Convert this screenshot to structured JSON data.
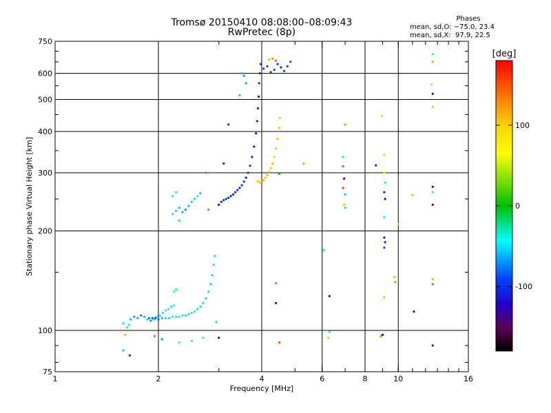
{
  "title": {
    "line1": "Tromsø 20150410 08:08:00–08:09:43",
    "line2": "RwPretec (8p)"
  },
  "phase_stats": {
    "header": "Phases",
    "line_o": "mean, sd,O: −75.0, 23.4",
    "line_x": "mean, sd,X:  97.9, 22.5"
  },
  "colorbar": {
    "unit": "[deg]",
    "range": [
      -180,
      180
    ],
    "ticks": [
      100,
      0,
      -100
    ],
    "tick_labels": [
      "100",
      "0",
      "-100"
    ]
  },
  "chart_data": {
    "type": "scatter",
    "title": "Tromsø 20150410 08:08:00–08:09:43",
    "subtitle": "RwPretec (8p)",
    "xlabel": "Frequency [MHz]",
    "ylabel": "Stationary phase Virtual Height [km]",
    "xscale": "log",
    "yscale": "log",
    "xlim": [
      1,
      16
    ],
    "ylim": [
      75,
      750
    ],
    "xticks": [
      1,
      2,
      4,
      6,
      8,
      10,
      16
    ],
    "xtick_labels": [
      "1",
      "2",
      "4",
      "6",
      "8",
      "10",
      "16"
    ],
    "yticks": [
      75,
      100,
      200,
      300,
      400,
      500,
      600,
      750
    ],
    "ytick_labels": [
      "75",
      "100",
      "200",
      "300",
      "400",
      "500",
      "600",
      "750"
    ],
    "grid": true,
    "color_encoding": "phase in degrees",
    "points": [
      {
        "x": 1.58,
        "y": 105,
        "phase": -50
      },
      {
        "x": 1.62,
        "y": 102,
        "phase": -45
      },
      {
        "x": 1.64,
        "y": 104,
        "phase": -40
      },
      {
        "x": 1.55,
        "y": 100,
        "phase": 130
      },
      {
        "x": 1.6,
        "y": 97,
        "phase": 110
      },
      {
        "x": 1.66,
        "y": 108,
        "phase": -60
      },
      {
        "x": 1.7,
        "y": 110,
        "phase": -70
      },
      {
        "x": 1.74,
        "y": 109,
        "phase": -65
      },
      {
        "x": 1.78,
        "y": 111,
        "phase": -80
      },
      {
        "x": 1.82,
        "y": 110,
        "phase": -60
      },
      {
        "x": 1.86,
        "y": 108,
        "phase": -55
      },
      {
        "x": 1.9,
        "y": 107,
        "phase": -70
      },
      {
        "x": 1.94,
        "y": 108,
        "phase": -50
      },
      {
        "x": 1.98,
        "y": 110,
        "phase": -40
      },
      {
        "x": 2.02,
        "y": 111,
        "phase": -45
      },
      {
        "x": 2.06,
        "y": 113,
        "phase": -50
      },
      {
        "x": 2.1,
        "y": 115,
        "phase": -45
      },
      {
        "x": 2.14,
        "y": 116,
        "phase": -40
      },
      {
        "x": 2.18,
        "y": 118,
        "phase": -35
      },
      {
        "x": 2.22,
        "y": 119,
        "phase": -40
      },
      {
        "x": 1.88,
        "y": 109,
        "phase": -75
      },
      {
        "x": 1.92,
        "y": 109,
        "phase": -85
      },
      {
        "x": 1.96,
        "y": 109,
        "phase": -90
      },
      {
        "x": 2.0,
        "y": 108,
        "phase": -80
      },
      {
        "x": 2.05,
        "y": 109,
        "phase": -60
      },
      {
        "x": 2.1,
        "y": 109,
        "phase": -55
      },
      {
        "x": 2.15,
        "y": 109,
        "phase": -50
      },
      {
        "x": 2.2,
        "y": 110,
        "phase": -45
      },
      {
        "x": 2.25,
        "y": 110,
        "phase": -40
      },
      {
        "x": 2.3,
        "y": 110,
        "phase": -38
      },
      {
        "x": 2.35,
        "y": 111,
        "phase": -36
      },
      {
        "x": 2.4,
        "y": 111,
        "phase": -35
      },
      {
        "x": 2.45,
        "y": 112,
        "phase": -34
      },
      {
        "x": 2.5,
        "y": 113,
        "phase": -33
      },
      {
        "x": 2.55,
        "y": 114,
        "phase": -32
      },
      {
        "x": 2.6,
        "y": 116,
        "phase": -30
      },
      {
        "x": 2.65,
        "y": 118,
        "phase": -30
      },
      {
        "x": 2.7,
        "y": 121,
        "phase": -30
      },
      {
        "x": 2.75,
        "y": 125,
        "phase": -30
      },
      {
        "x": 2.8,
        "y": 131,
        "phase": -30
      },
      {
        "x": 2.84,
        "y": 138,
        "phase": -30
      },
      {
        "x": 2.87,
        "y": 147,
        "phase": -30
      },
      {
        "x": 2.9,
        "y": 158,
        "phase": -35
      },
      {
        "x": 2.92,
        "y": 168,
        "phase": -35
      },
      {
        "x": 2.22,
        "y": 131,
        "phase": -40
      },
      {
        "x": 2.25,
        "y": 133,
        "phase": -35
      },
      {
        "x": 1.95,
        "y": 96,
        "phase": -60
      },
      {
        "x": 2.05,
        "y": 94,
        "phase": -70
      },
      {
        "x": 2.3,
        "y": 92,
        "phase": -40
      },
      {
        "x": 2.5,
        "y": 93,
        "phase": -35
      },
      {
        "x": 2.7,
        "y": 95,
        "phase": -40
      },
      {
        "x": 1.58,
        "y": 87,
        "phase": -55
      },
      {
        "x": 1.65,
        "y": 84,
        "phase": -100
      },
      {
        "x": 2.95,
        "y": 106,
        "phase": -30
      },
      {
        "x": 2.2,
        "y": 225,
        "phase": -50
      },
      {
        "x": 2.25,
        "y": 230,
        "phase": -55
      },
      {
        "x": 2.3,
        "y": 235,
        "phase": -60
      },
      {
        "x": 2.35,
        "y": 228,
        "phase": -65
      },
      {
        "x": 2.4,
        "y": 232,
        "phase": -70
      },
      {
        "x": 2.45,
        "y": 238,
        "phase": -60
      },
      {
        "x": 2.5,
        "y": 245,
        "phase": -55
      },
      {
        "x": 2.55,
        "y": 250,
        "phase": -50
      },
      {
        "x": 2.6,
        "y": 255,
        "phase": -45
      },
      {
        "x": 2.65,
        "y": 260,
        "phase": -60
      },
      {
        "x": 2.2,
        "y": 255,
        "phase": -40
      },
      {
        "x": 2.25,
        "y": 262,
        "phase": -45
      },
      {
        "x": 2.3,
        "y": 215,
        "phase": -50
      },
      {
        "x": 2.8,
        "y": 232,
        "phase": 140
      },
      {
        "x": 2.75,
        "y": 300,
        "phase": 150
      },
      {
        "x": 3.0,
        "y": 240,
        "phase": -110
      },
      {
        "x": 3.05,
        "y": 245,
        "phase": -105
      },
      {
        "x": 3.1,
        "y": 248,
        "phase": -100
      },
      {
        "x": 3.15,
        "y": 250,
        "phase": -95
      },
      {
        "x": 3.2,
        "y": 252,
        "phase": -100
      },
      {
        "x": 3.25,
        "y": 255,
        "phase": -105
      },
      {
        "x": 3.3,
        "y": 258,
        "phase": -100
      },
      {
        "x": 3.35,
        "y": 262,
        "phase": -95
      },
      {
        "x": 3.4,
        "y": 266,
        "phase": -100
      },
      {
        "x": 3.45,
        "y": 270,
        "phase": -105
      },
      {
        "x": 3.5,
        "y": 275,
        "phase": -100
      },
      {
        "x": 3.55,
        "y": 282,
        "phase": -110
      },
      {
        "x": 3.6,
        "y": 290,
        "phase": -115
      },
      {
        "x": 3.65,
        "y": 300,
        "phase": -110
      },
      {
        "x": 3.7,
        "y": 315,
        "phase": -105
      },
      {
        "x": 3.75,
        "y": 335,
        "phase": -110
      },
      {
        "x": 3.8,
        "y": 360,
        "phase": -115
      },
      {
        "x": 3.85,
        "y": 395,
        "phase": -110
      },
      {
        "x": 3.88,
        "y": 430,
        "phase": -105
      },
      {
        "x": 3.9,
        "y": 470,
        "phase": -110
      },
      {
        "x": 3.92,
        "y": 510,
        "phase": -115
      },
      {
        "x": 3.93,
        "y": 560,
        "phase": -110
      },
      {
        "x": 3.95,
        "y": 600,
        "phase": -105
      },
      {
        "x": 3.97,
        "y": 640,
        "phase": -100
      },
      {
        "x": 4.05,
        "y": 620,
        "phase": -95
      },
      {
        "x": 4.15,
        "y": 630,
        "phase": -100
      },
      {
        "x": 4.25,
        "y": 605,
        "phase": -105
      },
      {
        "x": 4.35,
        "y": 615,
        "phase": -90
      },
      {
        "x": 4.45,
        "y": 640,
        "phase": -95
      },
      {
        "x": 4.55,
        "y": 625,
        "phase": -110
      },
      {
        "x": 4.65,
        "y": 610,
        "phase": -100
      },
      {
        "x": 4.75,
        "y": 630,
        "phase": -95
      },
      {
        "x": 4.85,
        "y": 650,
        "phase": -90
      },
      {
        "x": 4.3,
        "y": 665,
        "phase": 130
      },
      {
        "x": 4.2,
        "y": 660,
        "phase": 110
      },
      {
        "x": 4.4,
        "y": 655,
        "phase": 150
      },
      {
        "x": 3.5,
        "y": 600,
        "phase": -60
      },
      {
        "x": 3.55,
        "y": 590,
        "phase": -70
      },
      {
        "x": 3.6,
        "y": 560,
        "phase": -65
      },
      {
        "x": 3.45,
        "y": 515,
        "phase": -55
      },
      {
        "x": 3.2,
        "y": 420,
        "phase": -100
      },
      {
        "x": 3.1,
        "y": 320,
        "phase": -105
      },
      {
        "x": 3.9,
        "y": 283,
        "phase": 110
      },
      {
        "x": 3.95,
        "y": 280,
        "phase": 100
      },
      {
        "x": 4.0,
        "y": 282,
        "phase": 120
      },
      {
        "x": 4.05,
        "y": 285,
        "phase": 115
      },
      {
        "x": 4.1,
        "y": 290,
        "phase": 105
      },
      {
        "x": 4.15,
        "y": 295,
        "phase": 110
      },
      {
        "x": 4.2,
        "y": 302,
        "phase": 100
      },
      {
        "x": 4.25,
        "y": 310,
        "phase": 105
      },
      {
        "x": 4.3,
        "y": 320,
        "phase": 110
      },
      {
        "x": 4.35,
        "y": 335,
        "phase": 100
      },
      {
        "x": 4.4,
        "y": 355,
        "phase": 105
      },
      {
        "x": 4.45,
        "y": 380,
        "phase": 110
      },
      {
        "x": 4.5,
        "y": 410,
        "phase": 105
      },
      {
        "x": 4.52,
        "y": 440,
        "phase": 100
      },
      {
        "x": 4.5,
        "y": 298,
        "phase": 0
      },
      {
        "x": 5.3,
        "y": 320,
        "phase": 120
      },
      {
        "x": 4.4,
        "y": 139,
        "phase": 140
      },
      {
        "x": 4.4,
        "y": 121,
        "phase": -120
      },
      {
        "x": 4.5,
        "y": 92,
        "phase": 150
      },
      {
        "x": 3.0,
        "y": 95,
        "phase": -130
      },
      {
        "x": 6.05,
        "y": 175,
        "phase": -30
      },
      {
        "x": 6.3,
        "y": 127,
        "phase": -130
      },
      {
        "x": 6.25,
        "y": 95,
        "phase": 110
      },
      {
        "x": 6.3,
        "y": 99,
        "phase": -40
      },
      {
        "x": 6.9,
        "y": 335,
        "phase": -40
      },
      {
        "x": 6.9,
        "y": 314,
        "phase": 150
      },
      {
        "x": 6.95,
        "y": 288,
        "phase": -120
      },
      {
        "x": 6.9,
        "y": 270,
        "phase": 160
      },
      {
        "x": 7.0,
        "y": 258,
        "phase": -20
      },
      {
        "x": 6.95,
        "y": 240,
        "phase": 110
      },
      {
        "x": 7.0,
        "y": 235,
        "phase": -30
      },
      {
        "x": 7.0,
        "y": 420,
        "phase": 120
      },
      {
        "x": 8.6,
        "y": 316,
        "phase": -110
      },
      {
        "x": 8.95,
        "y": 445,
        "phase": 100
      },
      {
        "x": 9.1,
        "y": 340,
        "phase": 100
      },
      {
        "x": 9.1,
        "y": 300,
        "phase": 90
      },
      {
        "x": 9.15,
        "y": 280,
        "phase": -50
      },
      {
        "x": 9.1,
        "y": 262,
        "phase": -110
      },
      {
        "x": 9.15,
        "y": 250,
        "phase": -120
      },
      {
        "x": 9.1,
        "y": 220,
        "phase": -40
      },
      {
        "x": 9.1,
        "y": 191,
        "phase": -120
      },
      {
        "x": 9.15,
        "y": 185,
        "phase": -110
      },
      {
        "x": 9.1,
        "y": 178,
        "phase": -90
      },
      {
        "x": 9.1,
        "y": 126,
        "phase": 110
      },
      {
        "x": 8.9,
        "y": 96,
        "phase": 140
      },
      {
        "x": 9.0,
        "y": 97,
        "phase": -120
      },
      {
        "x": 10.0,
        "y": 210,
        "phase": 100
      },
      {
        "x": 9.75,
        "y": 145,
        "phase": 110
      },
      {
        "x": 9.8,
        "y": 140,
        "phase": 20
      },
      {
        "x": 11.1,
        "y": 114,
        "phase": -120
      },
      {
        "x": 11.0,
        "y": 257,
        "phase": 110
      },
      {
        "x": 12.6,
        "y": 685,
        "phase": -40
      },
      {
        "x": 12.6,
        "y": 650,
        "phase": 120
      },
      {
        "x": 12.5,
        "y": 555,
        "phase": 100
      },
      {
        "x": 12.6,
        "y": 520,
        "phase": -120
      },
      {
        "x": 12.6,
        "y": 475,
        "phase": 110
      },
      {
        "x": 12.6,
        "y": 272,
        "phase": -130
      },
      {
        "x": 12.6,
        "y": 262,
        "phase": -40
      },
      {
        "x": 12.6,
        "y": 240,
        "phase": -110
      },
      {
        "x": 12.6,
        "y": 143,
        "phase": 110
      },
      {
        "x": 12.6,
        "y": 138,
        "phase": 150
      },
      {
        "x": 12.6,
        "y": 90,
        "phase": -110
      }
    ]
  }
}
